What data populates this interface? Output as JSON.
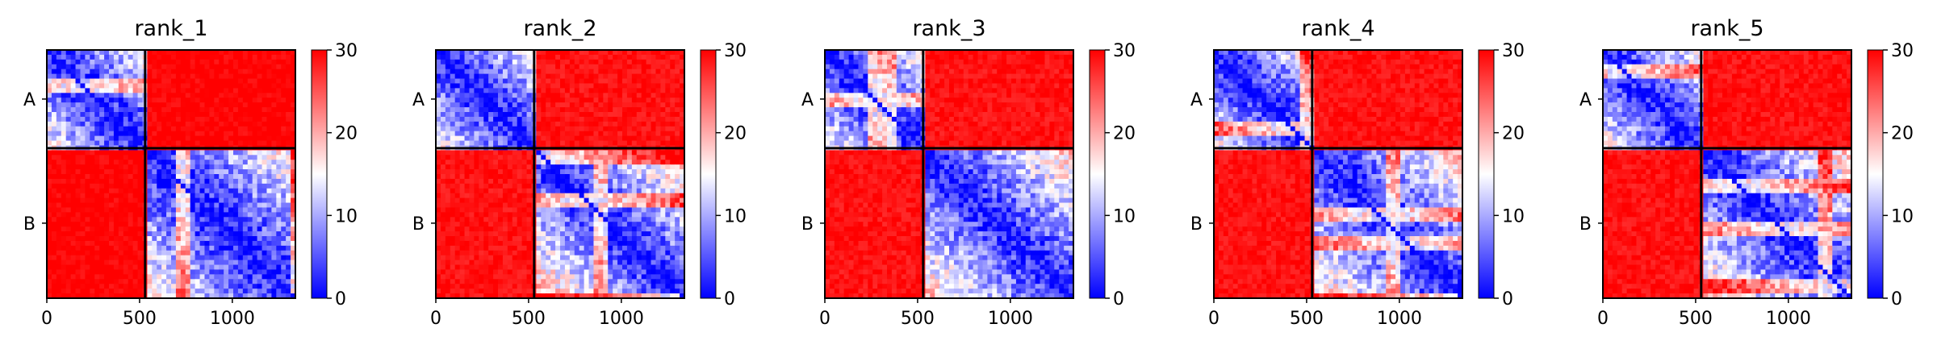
{
  "chart_data": [
    {
      "type": "heatmap",
      "title": "rank_1",
      "chains": [
        "A",
        "B"
      ],
      "chain_boundary": 530,
      "x_ticks": [
        "0",
        "500",
        "1000"
      ],
      "x_tick_values": [
        0,
        500,
        1000
      ],
      "xlim": [
        0,
        1340
      ],
      "ylim": [
        1340,
        0
      ],
      "colorbar": {
        "ticks": [
          "0",
          "10",
          "20",
          "30"
        ],
        "tick_values": [
          0,
          10,
          20,
          30
        ],
        "range": [
          0,
          30
        ],
        "colormap": "bwr"
      },
      "blocks": {
        "intra_A_mean": 9,
        "intra_B_mean": 10,
        "inter_mean": 30
      }
    },
    {
      "type": "heatmap",
      "title": "rank_2",
      "chains": [
        "A",
        "B"
      ],
      "chain_boundary": 530,
      "x_ticks": [
        "0",
        "500",
        "1000"
      ],
      "x_tick_values": [
        0,
        500,
        1000
      ],
      "xlim": [
        0,
        1340
      ],
      "ylim": [
        1340,
        0
      ],
      "colorbar": {
        "ticks": [
          "0",
          "10",
          "20",
          "30"
        ],
        "tick_values": [
          0,
          10,
          20,
          30
        ],
        "range": [
          0,
          30
        ],
        "colormap": "bwr"
      },
      "blocks": {
        "intra_A_mean": 9,
        "intra_B_mean": 12,
        "inter_mean": 29
      }
    },
    {
      "type": "heatmap",
      "title": "rank_3",
      "chains": [
        "A",
        "B"
      ],
      "chain_boundary": 530,
      "x_ticks": [
        "0",
        "500",
        "1000"
      ],
      "x_tick_values": [
        0,
        500,
        1000
      ],
      "xlim": [
        0,
        1340
      ],
      "ylim": [
        1340,
        0
      ],
      "colorbar": {
        "ticks": [
          "0",
          "10",
          "20",
          "30"
        ],
        "tick_values": [
          0,
          10,
          20,
          30
        ],
        "range": [
          0,
          30
        ],
        "colormap": "bwr"
      },
      "blocks": {
        "intra_A_mean": 9,
        "intra_B_mean": 11,
        "inter_mean": 29
      }
    },
    {
      "type": "heatmap",
      "title": "rank_4",
      "chains": [
        "A",
        "B"
      ],
      "chain_boundary": 530,
      "x_ticks": [
        "0",
        "500",
        "1000"
      ],
      "x_tick_values": [
        0,
        500,
        1000
      ],
      "xlim": [
        0,
        1340
      ],
      "ylim": [
        1340,
        0
      ],
      "colorbar": {
        "ticks": [
          "0",
          "10",
          "20",
          "30"
        ],
        "tick_values": [
          0,
          10,
          20,
          30
        ],
        "range": [
          0,
          30
        ],
        "colormap": "bwr"
      },
      "blocks": {
        "intra_A_mean": 9,
        "intra_B_mean": 11,
        "inter_mean": 29
      }
    },
    {
      "type": "heatmap",
      "title": "rank_5",
      "chains": [
        "A",
        "B"
      ],
      "chain_boundary": 530,
      "x_ticks": [
        "0",
        "500",
        "1000"
      ],
      "x_tick_values": [
        0,
        500,
        1000
      ],
      "xlim": [
        0,
        1340
      ],
      "ylim": [
        1340,
        0
      ],
      "colorbar": {
        "ticks": [
          "0",
          "10",
          "20",
          "30"
        ],
        "tick_values": [
          0,
          10,
          20,
          30
        ],
        "range": [
          0,
          30
        ],
        "colormap": "bwr"
      },
      "blocks": {
        "intra_A_mean": 9,
        "intra_B_mean": 11,
        "inter_mean": 29
      }
    }
  ],
  "colors": {
    "low": "#0000ff",
    "mid": "#ffffff",
    "high": "#ff0000",
    "frame": "#000000"
  }
}
